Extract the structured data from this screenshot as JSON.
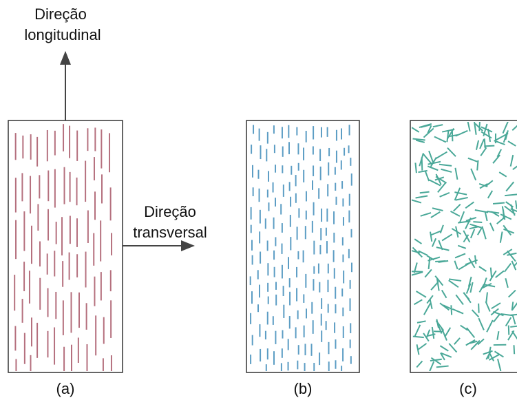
{
  "longitudinal_arrow": {
    "lines": [
      "Direção",
      "longitudinal"
    ]
  },
  "transverse_arrow": {
    "lines": [
      "Direção",
      "transversal"
    ]
  },
  "panels": [
    {
      "label": "(a)"
    },
    {
      "label": "(b)"
    },
    {
      "label": "(c)"
    }
  ]
}
